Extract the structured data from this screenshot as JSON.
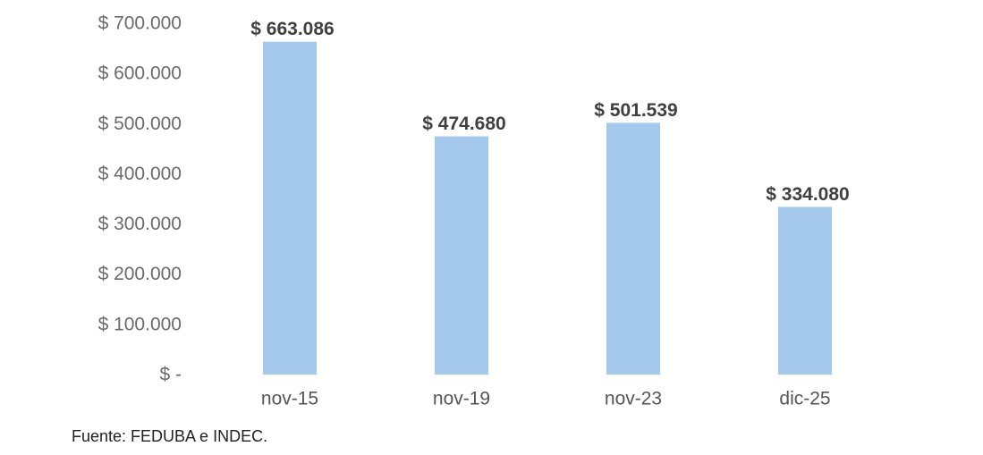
{
  "chart_data": {
    "type": "bar",
    "title": "",
    "xlabel": "",
    "ylabel": "",
    "categories": [
      "nov-15",
      "nov-19",
      "nov-23",
      "dic-25"
    ],
    "values": [
      663086,
      474680,
      501539,
      334080
    ],
    "data_labels": [
      "$ 663.086",
      "$ 474.680",
      "$ 501.539",
      "$ 334.080"
    ],
    "ylim": [
      0,
      700000
    ],
    "yticks": [
      0,
      100000,
      200000,
      300000,
      400000,
      500000,
      600000,
      700000
    ],
    "ytick_labels": [
      "$ -",
      "$ 100.000",
      "$ 200.000",
      "$ 300.000",
      "$ 400.000",
      "$ 500.000",
      "$ 600.000",
      "$ 700.000"
    ],
    "grid": false,
    "legend": "none",
    "bar_color": "#a4c9ec",
    "label_color": "#404040"
  },
  "source_note": "Fuente: FEDUBA e INDEC."
}
